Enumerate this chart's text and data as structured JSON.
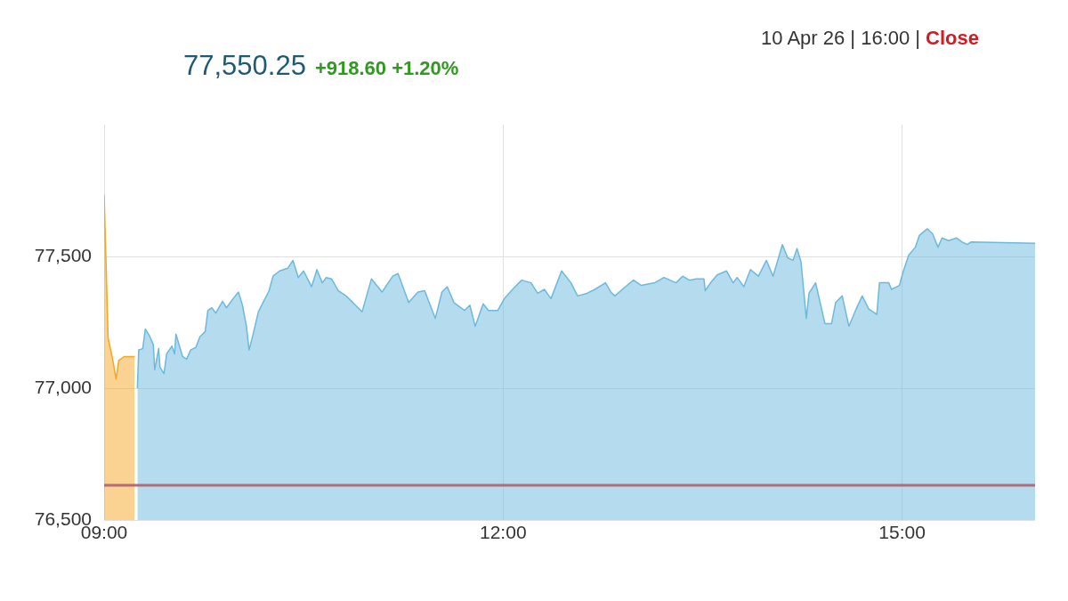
{
  "chart_data": {
    "type": "area",
    "title": "77,550.25",
    "subtitle": "+918.60 +1.20%",
    "annotations": [
      "10 Apr 26 | 16:00 |",
      "Close"
    ],
    "xlim": [
      9,
      16
    ],
    "xticks": [
      {
        "value": 9,
        "label": "09:00"
      },
      {
        "value": 12,
        "label": "12:00"
      },
      {
        "value": 15,
        "label": "15:00"
      }
    ],
    "ylim": [
      76500,
      78000
    ],
    "yticks": [
      {
        "value": 76500,
        "label": "76,500"
      },
      {
        "value": 77000,
        "label": "77,000"
      },
      {
        "value": 77500,
        "label": "77,500"
      }
    ],
    "grid": true,
    "legend": false,
    "ref_lines": [
      {
        "axis": "y",
        "value": 76631.65,
        "color": "#b36b78"
      }
    ],
    "series": [
      {
        "color": "#f5a623",
        "x": [
          9.0,
          9.03,
          9.06,
          9.09,
          9.11,
          9.15,
          9.23
        ],
        "values": [
          77735,
          77190,
          77120,
          77035,
          77105,
          77120,
          77120
        ]
      },
      {
        "color": "#6cb9de",
        "x": [
          9.25,
          9.26,
          9.29,
          9.31,
          9.34,
          9.37,
          9.38,
          9.41,
          9.42,
          9.45,
          9.47,
          9.51,
          9.53,
          9.54,
          9.59,
          9.62,
          9.65,
          9.69,
          9.72,
          9.76,
          9.78,
          9.81,
          9.84,
          9.89,
          9.92,
          9.97,
          10.01,
          10.04,
          10.07,
          10.09,
          10.12,
          10.16,
          10.24,
          10.27,
          10.32,
          10.38,
          10.42,
          10.46,
          10.5,
          10.56,
          10.6,
          10.64,
          10.67,
          10.71,
          10.76,
          10.82,
          10.94,
          11.01,
          11.09,
          11.17,
          11.21,
          11.29,
          11.36,
          11.41,
          11.49,
          11.54,
          11.58,
          11.63,
          11.71,
          11.75,
          11.79,
          11.85,
          11.89,
          11.96,
          12.01,
          12.09,
          12.14,
          12.21,
          12.26,
          12.31,
          12.36,
          12.44,
          12.51,
          12.56,
          12.63,
          12.69,
          12.77,
          12.81,
          12.84,
          12.92,
          12.98,
          13.04,
          13.14,
          13.21,
          13.3,
          13.35,
          13.4,
          13.45,
          13.51,
          13.52,
          13.56,
          13.61,
          13.68,
          13.73,
          13.76,
          13.81,
          13.86,
          13.92,
          13.98,
          14.03,
          14.1,
          14.14,
          14.18,
          14.21,
          14.24,
          14.28,
          14.3,
          14.35,
          14.42,
          14.47,
          14.5,
          14.55,
          14.6,
          14.65,
          14.7,
          14.75,
          14.81,
          14.83,
          14.9,
          14.92,
          14.98,
          15.01,
          15.05,
          15.1,
          15.13,
          15.19,
          15.23,
          15.27,
          15.3,
          15.35,
          15.41,
          15.45,
          15.49,
          15.52,
          16.0
        ],
        "values": [
          77000,
          77145,
          77150,
          77225,
          77200,
          77165,
          77070,
          77150,
          77080,
          77055,
          77130,
          77160,
          77130,
          77205,
          77120,
          77110,
          77145,
          77155,
          77195,
          77215,
          77295,
          77305,
          77285,
          77330,
          77305,
          77340,
          77365,
          77315,
          77235,
          77145,
          77205,
          77290,
          77370,
          77425,
          77445,
          77455,
          77485,
          77420,
          77445,
          77385,
          77450,
          77400,
          77420,
          77415,
          77370,
          77350,
          77290,
          77415,
          77365,
          77425,
          77435,
          77325,
          77365,
          77370,
          77265,
          77365,
          77385,
          77325,
          77295,
          77315,
          77235,
          77320,
          77295,
          77295,
          77340,
          77385,
          77410,
          77400,
          77360,
          77375,
          77340,
          77445,
          77400,
          77350,
          77360,
          77375,
          77400,
          77365,
          77350,
          77385,
          77410,
          77390,
          77400,
          77420,
          77400,
          77425,
          77410,
          77415,
          77415,
          77370,
          77400,
          77430,
          77445,
          77400,
          77420,
          77385,
          77450,
          77425,
          77485,
          77425,
          77545,
          77495,
          77485,
          77530,
          77480,
          77265,
          77360,
          77400,
          77245,
          77245,
          77325,
          77350,
          77235,
          77295,
          77350,
          77300,
          77280,
          77400,
          77400,
          77375,
          77390,
          77445,
          77505,
          77535,
          77580,
          77605,
          77585,
          77535,
          77570,
          77560,
          77570,
          77555,
          77545,
          77555,
          77550
        ]
      }
    ]
  }
}
